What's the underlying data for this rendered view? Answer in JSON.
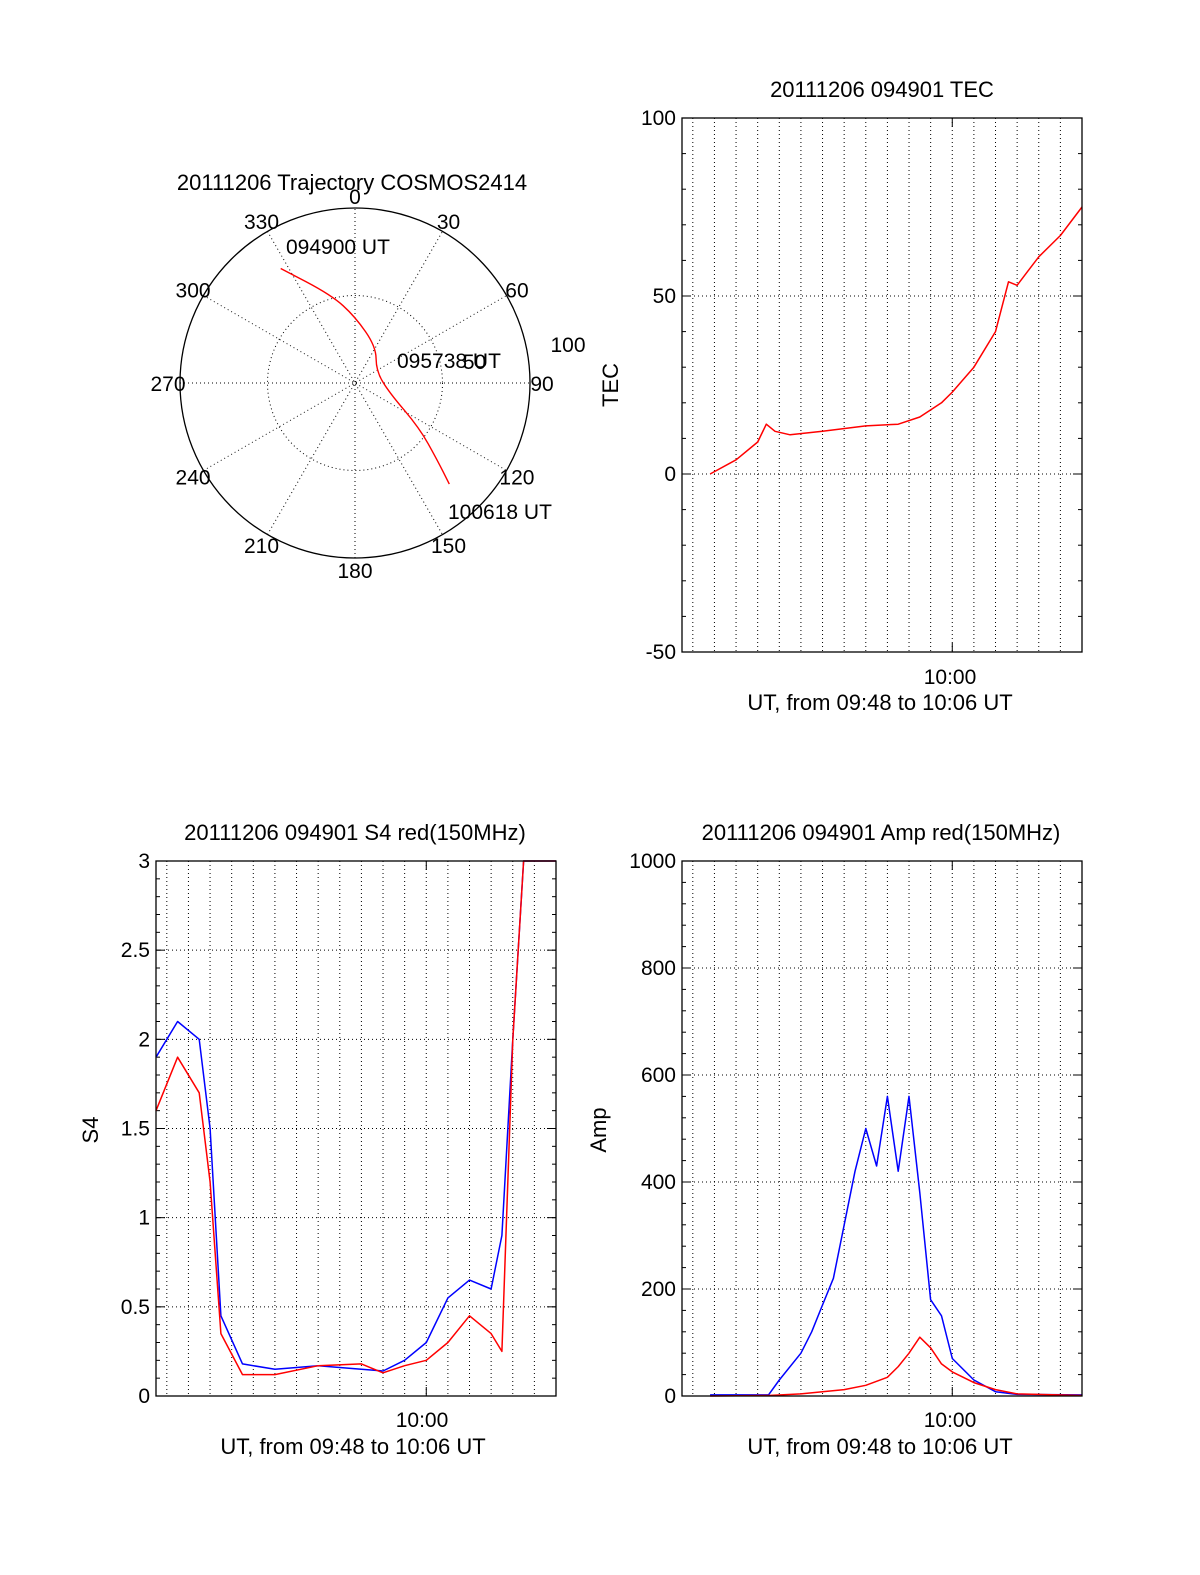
{
  "chart_data": [
    {
      "type": "polar",
      "title": "20111206 Trajectory COSMOS2414",
      "azimuth_labels": [
        "0",
        "30",
        "60",
        "90",
        "120",
        "150",
        "180",
        "210",
        "240",
        "270",
        "300",
        "330"
      ],
      "radial_labels": [
        "50",
        "100"
      ],
      "rlim": [
        0,
        100
      ],
      "grid": true,
      "series": [
        {
          "color": "#ff0000",
          "points": [
            {
              "az": 327,
              "r": 78
            },
            {
              "az": 345,
              "r": 52
            },
            {
              "az": 0,
              "r": 38
            },
            {
              "az": 30,
              "r": 24
            },
            {
              "az": 60,
              "r": 14
            },
            {
              "az": 105,
              "r": 20
            },
            {
              "az": 125,
              "r": 45
            },
            {
              "az": 133,
              "r": 64
            },
            {
              "az": 137,
              "r": 79
            }
          ]
        }
      ],
      "annotations": [
        "094900 UT",
        "095738 UT",
        "100618 UT"
      ]
    },
    {
      "type": "line",
      "title": "20111206 094901 TEC",
      "ylabel": "TEC",
      "xlabel": "UT, from 09:48 to 10:06 UT",
      "x_tick_label": "10:00",
      "y_ticks": [
        "-50",
        "0",
        "50",
        "100"
      ],
      "ylim": [
        -50,
        100
      ],
      "xlim_minutes": [
        -12.5,
        6.0
      ],
      "grid": true,
      "series": [
        {
          "color": "#ff0000",
          "x": [
            -11.2,
            -10.0,
            -9.0,
            -8.6,
            -8.2,
            -7.5,
            -6.0,
            -4.0,
            -2.5,
            -1.5,
            -0.5,
            0.0,
            1.0,
            2.0,
            2.6,
            3.0,
            3.5,
            4.0,
            5.0,
            6.0
          ],
          "y": [
            0,
            4,
            9,
            14,
            12,
            11,
            12,
            13.5,
            14,
            16,
            20,
            23,
            30,
            40,
            54,
            53,
            57,
            61,
            67,
            75
          ]
        }
      ]
    },
    {
      "type": "line",
      "title": "20111206 094901 S4 red(150MHz)",
      "ylabel": "S4",
      "xlabel": "UT, from 09:48 to 10:06 UT",
      "x_tick_label": "10:00",
      "y_ticks": [
        "0",
        "0.5",
        "1",
        "1.5",
        "2",
        "2.5",
        "3"
      ],
      "ylim": [
        0,
        3
      ],
      "xlim_minutes": [
        -12.5,
        6.0
      ],
      "grid": true,
      "series": [
        {
          "color": "#0000ff",
          "x": [
            -12.5,
            -11.5,
            -10.5,
            -10.0,
            -9.5,
            -8.5,
            -7.0,
            -5.0,
            -3.0,
            -2.0,
            -1.0,
            0.0,
            1.0,
            2.0,
            3.0,
            3.5,
            4.0,
            4.5,
            5.0,
            6.0
          ],
          "y": [
            1.9,
            2.1,
            2.0,
            1.5,
            0.45,
            0.18,
            0.15,
            0.17,
            0.15,
            0.14,
            0.2,
            0.3,
            0.55,
            0.65,
            0.6,
            0.9,
            2.0,
            3.0,
            3.0,
            3.0
          ]
        },
        {
          "color": "#ff0000",
          "x": [
            -12.5,
            -11.5,
            -10.5,
            -10.0,
            -9.5,
            -8.5,
            -7.0,
            -5.0,
            -3.0,
            -2.0,
            -1.0,
            0.0,
            1.0,
            2.0,
            3.0,
            3.5,
            4.0,
            4.5,
            5.0,
            6.0
          ],
          "y": [
            1.6,
            1.9,
            1.7,
            1.2,
            0.35,
            0.12,
            0.12,
            0.17,
            0.18,
            0.13,
            0.17,
            0.2,
            0.3,
            0.45,
            0.35,
            0.25,
            2.0,
            3.0,
            3.0,
            3.0
          ]
        }
      ]
    },
    {
      "type": "line",
      "title": "20111206 094901 Amp red(150MHz)",
      "ylabel": "Amp",
      "xlabel": "UT, from 09:48 to 10:06 UT",
      "x_tick_label": "10:00",
      "y_ticks": [
        "0",
        "200",
        "400",
        "600",
        "800",
        "1000"
      ],
      "ylim": [
        0,
        1000
      ],
      "xlim_minutes": [
        -12.5,
        6.0
      ],
      "grid": true,
      "series": [
        {
          "color": "#0000ff",
          "x": [
            -11.2,
            -8.5,
            -8.0,
            -7.0,
            -6.5,
            -6.0,
            -5.5,
            -5.0,
            -4.5,
            -4.0,
            -3.5,
            -3.0,
            -2.5,
            -2.0,
            -1.5,
            -1.0,
            -0.5,
            0.0,
            1.0,
            2.0,
            3.0,
            6.0
          ],
          "y": [
            2,
            2,
            30,
            80,
            120,
            170,
            220,
            320,
            420,
            500,
            430,
            560,
            420,
            560,
            380,
            180,
            150,
            70,
            30,
            8,
            3,
            2
          ]
        },
        {
          "color": "#ff0000",
          "x": [
            -11.2,
            -8.5,
            -7.0,
            -6.0,
            -5.0,
            -4.0,
            -3.0,
            -2.5,
            -2.0,
            -1.5,
            -1.0,
            -0.5,
            0.0,
            1.0,
            2.0,
            3.0,
            6.0
          ],
          "y": [
            0,
            1,
            4,
            8,
            12,
            20,
            35,
            55,
            80,
            110,
            90,
            60,
            45,
            25,
            12,
            4,
            1
          ]
        }
      ]
    }
  ]
}
